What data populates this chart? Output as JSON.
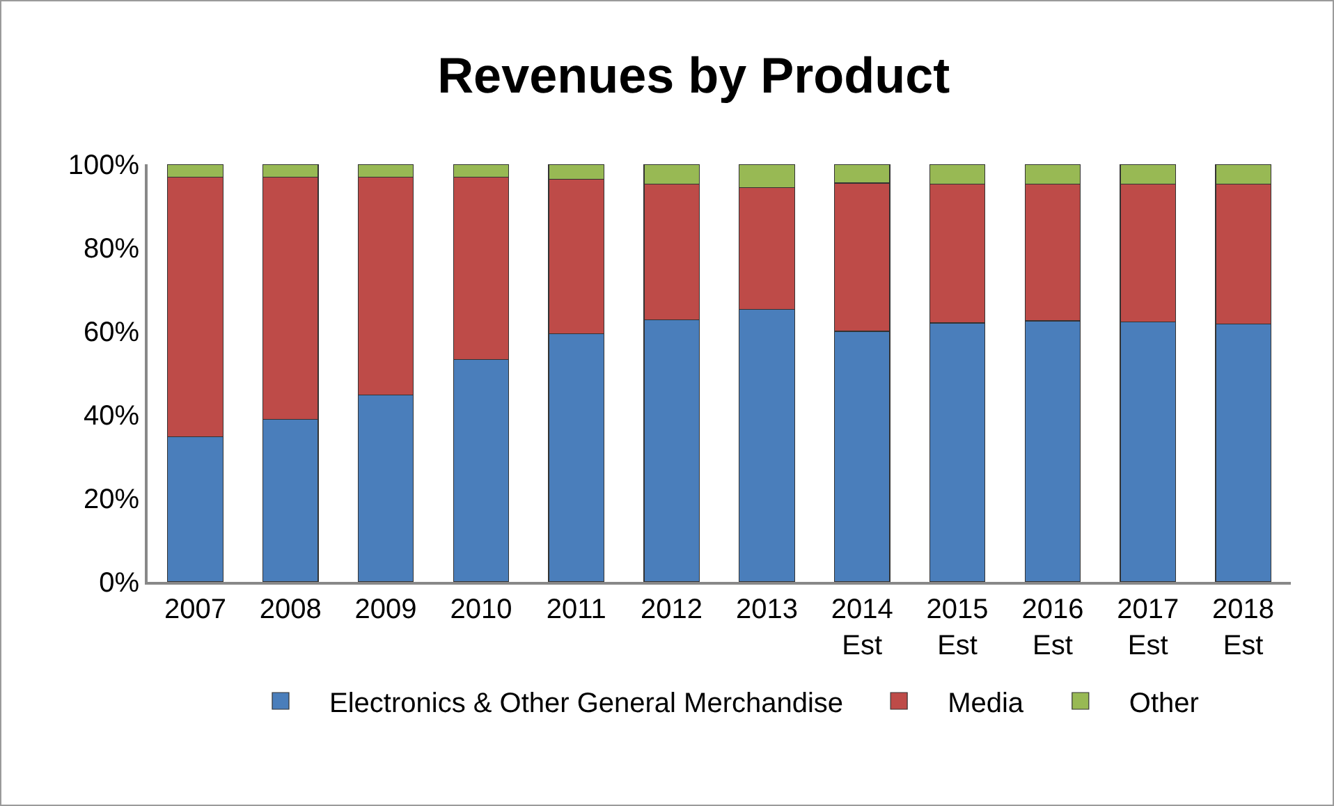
{
  "chart_data": {
    "type": "bar",
    "title": "Revenues by Product",
    "stacked": true,
    "categories": [
      "2007",
      "2008",
      "2009",
      "2010",
      "2011",
      "2012",
      "2013",
      "2014 Est",
      "2015 Est",
      "2016 Est",
      "2017 Est",
      "2018 Est"
    ],
    "series": [
      {
        "name": "Electronics & Other General Merchandise",
        "color": "#4a7ebb",
        "values": [
          34.7,
          38.9,
          44.7,
          53.3,
          59.4,
          62.7,
          65.3,
          60.0,
          62.0,
          62.5,
          62.2,
          61.7
        ]
      },
      {
        "name": "Media",
        "color": "#be4b48",
        "values": [
          62.2,
          58.0,
          52.2,
          43.6,
          37.0,
          32.6,
          29.1,
          35.5,
          33.3,
          32.8,
          33.1,
          33.6
        ]
      },
      {
        "name": "Other",
        "color": "#98b954",
        "values": [
          3.1,
          3.1,
          3.1,
          3.1,
          3.6,
          4.7,
          5.6,
          4.5,
          4.7,
          4.7,
          4.7,
          4.7
        ]
      }
    ],
    "ylim": [
      0,
      100
    ],
    "yticks": [
      {
        "value": 0,
        "label": "0%"
      },
      {
        "value": 20,
        "label": "20%"
      },
      {
        "value": 40,
        "label": "40%"
      },
      {
        "value": 60,
        "label": "60%"
      },
      {
        "value": 80,
        "label": "80%"
      },
      {
        "value": 100,
        "label": "100%"
      }
    ],
    "grid": false,
    "legend": "bottom"
  }
}
